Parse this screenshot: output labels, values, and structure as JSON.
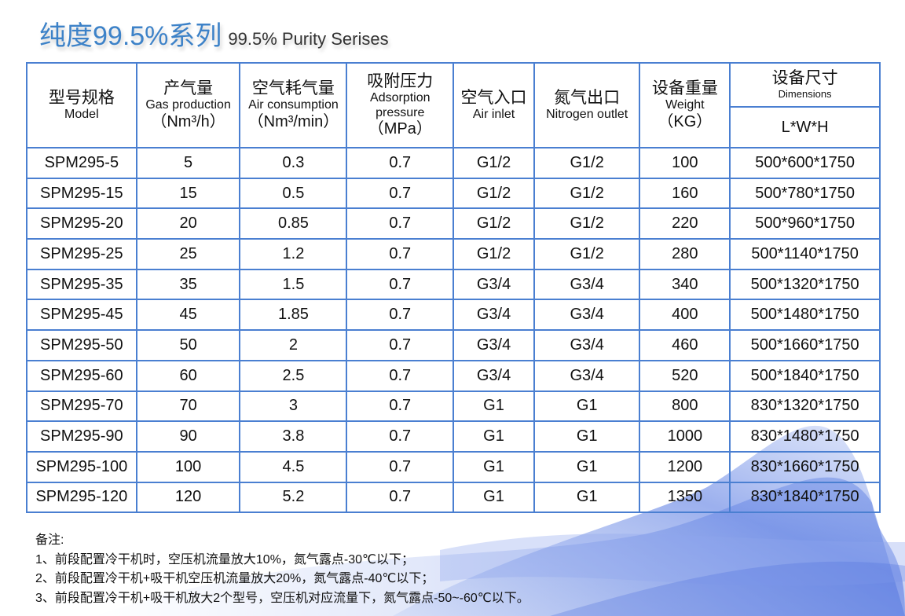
{
  "title": {
    "cn": "纯度99.5%系列",
    "en": "99.5% Purity Serises"
  },
  "headers": [
    {
      "cn": "型号规格",
      "en": "Model",
      "unit": ""
    },
    {
      "cn": "产气量",
      "en": "Gas production",
      "unit": "（Nm³/h）"
    },
    {
      "cn": "空气耗气量",
      "en": "Air consumption",
      "unit": "（Nm³/min）"
    },
    {
      "cn": "吸附压力",
      "en": "Adsorption pressure",
      "unit": "（MPa）"
    },
    {
      "cn": "空气入口",
      "en": "Air inlet",
      "unit": ""
    },
    {
      "cn": "氮气出口",
      "en": "Nitrogen outlet",
      "unit": ""
    },
    {
      "cn": "设备重量",
      "en": "Weight",
      "unit": "（KG）"
    },
    {
      "cn": "设备尺寸",
      "en": "Dimensions",
      "unit": "L*W*H"
    }
  ],
  "rows": [
    [
      "SPM295-5",
      "5",
      "0.3",
      "0.7",
      "G1/2",
      "G1/2",
      "100",
      "500*600*1750"
    ],
    [
      "SPM295-15",
      "15",
      "0.5",
      "0.7",
      "G1/2",
      "G1/2",
      "160",
      "500*780*1750"
    ],
    [
      "SPM295-20",
      "20",
      "0.85",
      "0.7",
      "G1/2",
      "G1/2",
      "220",
      "500*960*1750"
    ],
    [
      "SPM295-25",
      "25",
      "1.2",
      "0.7",
      "G1/2",
      "G1/2",
      "280",
      "500*1140*1750"
    ],
    [
      "SPM295-35",
      "35",
      "1.5",
      "0.7",
      "G3/4",
      "G3/4",
      "340",
      "500*1320*1750"
    ],
    [
      "SPM295-45",
      "45",
      "1.85",
      "0.7",
      "G3/4",
      "G3/4",
      "400",
      "500*1480*1750"
    ],
    [
      "SPM295-50",
      "50",
      "2",
      "0.7",
      "G3/4",
      "G3/4",
      "460",
      "500*1660*1750"
    ],
    [
      "SPM295-60",
      "60",
      "2.5",
      "0.7",
      "G3/4",
      "G3/4",
      "520",
      "500*1840*1750"
    ],
    [
      "SPM295-70",
      "70",
      "3",
      "0.7",
      "G1",
      "G1",
      "800",
      "830*1320*1750"
    ],
    [
      "SPM295-90",
      "90",
      "3.8",
      "0.7",
      "G1",
      "G1",
      "1000",
      "830*1480*1750"
    ],
    [
      "SPM295-100",
      "100",
      "4.5",
      "0.7",
      "G1",
      "G1",
      "1200",
      "830*1660*1750"
    ],
    [
      "SPM295-120",
      "120",
      "5.2",
      "0.7",
      "G1",
      "G1",
      "1350",
      "830*1840*1750"
    ]
  ],
  "notes": {
    "heading": "备注:",
    "items": [
      "1、前段配置冷干机时，空压机流量放大10%，氮气露点-30℃以下；",
      "2、前段配置冷干机+吸干机空压机流量放大20%，氮气露点-40℃以下；",
      "3、前段配置冷干机+吸干机放大2个型号，空压机对应流量下，氮气露点-50~-60℃以下。"
    ]
  }
}
